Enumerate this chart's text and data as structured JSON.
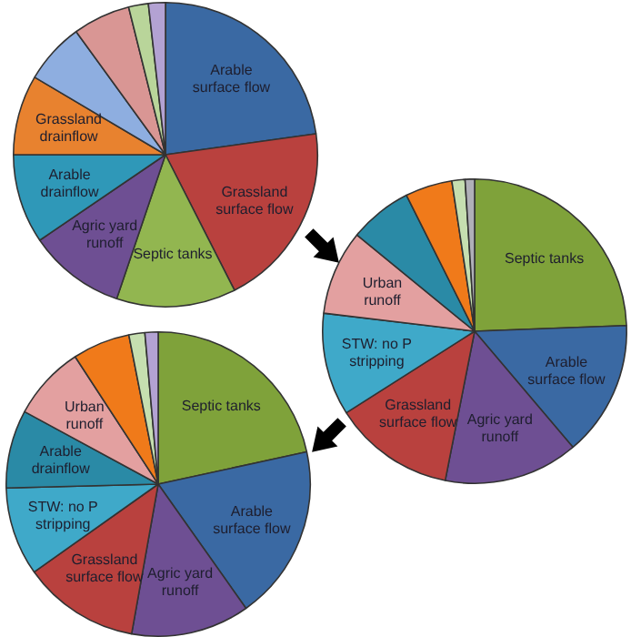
{
  "chart_data": [
    {
      "type": "pie",
      "categories": [
        "Arable surface flow",
        "Grassland surface flow",
        "Septic tanks",
        "Agric yard runoff",
        "Arable drainflow",
        "Grassland drainflow",
        null,
        null,
        null,
        null
      ],
      "values": [
        22.8,
        19.7,
        12.7,
        10.3,
        9.5,
        8.5,
        6.5,
        6.1,
        2.1,
        1.8
      ],
      "colors": [
        "#3a69a3",
        "#b9413e",
        "#92b650",
        "#6e4f93",
        "#2f98b8",
        "#e8822f",
        "#8eaee0",
        "#d99694",
        "#b9d59a",
        "#b3a2d3"
      ],
      "legend": false
    },
    {
      "type": "pie",
      "categories": [
        "Septic tanks",
        "Arable surface flow",
        "Agric yard runoff",
        "Grassland surface flow",
        "STW: no P stripping",
        "Urban runoff",
        null,
        null,
        null,
        null
      ],
      "values": [
        24.4,
        14.4,
        14.3,
        12.9,
        10.9,
        9.0,
        6.7,
        5.0,
        1.4,
        1.0
      ],
      "colors": [
        "#7fa23a",
        "#3a69a3",
        "#6e4f93",
        "#b9413e",
        "#3fa9c9",
        "#e3a0a0",
        "#2a8aa6",
        "#f07a1a",
        "#c6dfb0",
        "#b0b0b8"
      ],
      "legend": false
    },
    {
      "type": "pie",
      "categories": [
        "Septic tanks",
        "Arable surface flow",
        "Agric yard runoff",
        "Grassland surface flow",
        "STW: no P stripping",
        "Arable drainflow",
        "Urban runoff",
        null,
        null,
        null
      ],
      "values": [
        21.6,
        18.6,
        12.6,
        12.4,
        9.4,
        8.3,
        7.9,
        6.1,
        1.7,
        1.4
      ],
      "colors": [
        "#7fa23a",
        "#3a69a3",
        "#6e4f93",
        "#b9413e",
        "#3fa9c9",
        "#2a8aa6",
        "#e3a0a0",
        "#f07a1a",
        "#c6dfb0",
        "#b3a2d3"
      ],
      "legend": false
    }
  ]
}
